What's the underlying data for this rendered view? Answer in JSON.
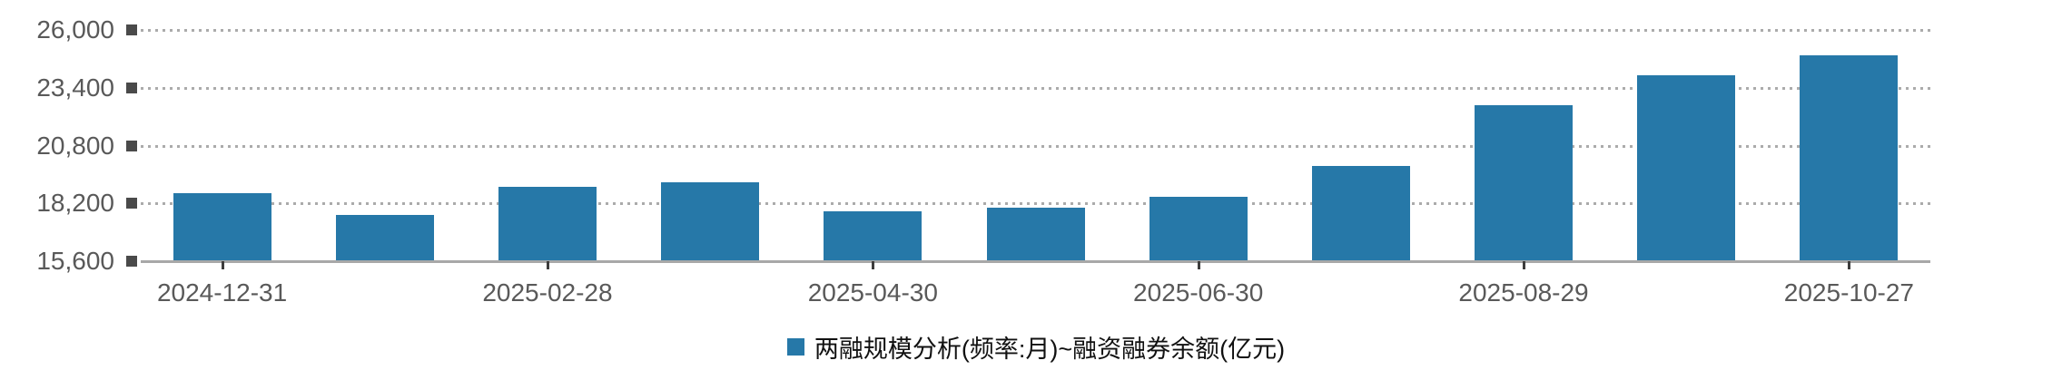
{
  "chart_data": {
    "type": "bar",
    "legend": "两融规模分析(频率:月)~融资融券余额(亿元)",
    "values": [
      18650,
      17700,
      18950,
      19150,
      17850,
      18000,
      18500,
      19900,
      22600,
      23950,
      24850
    ],
    "x_tick_labels": [
      "2024-12-31",
      "2025-02-28",
      "2025-04-30",
      "2025-06-30",
      "2025-08-29",
      "2025-10-27"
    ],
    "x_tick_bar_indices": [
      0,
      2,
      4,
      6,
      8,
      10
    ],
    "y_ticks": [
      15600,
      18200,
      20800,
      23400,
      26000
    ],
    "y_tick_labels": [
      "15,600",
      "18,200",
      "20,800",
      "23,400",
      "26,000"
    ],
    "ylim": [
      15600,
      26000
    ],
    "grid": "horizontal-dotted",
    "legend_position": "bottom-center",
    "colors": {
      "bar": "#2678a8",
      "gridline": "#ababab",
      "axis_line": "#a8a8a8",
      "tick_text": "#595959",
      "tick_marker": "#4a4a4a",
      "legend_text": "#111111"
    }
  }
}
